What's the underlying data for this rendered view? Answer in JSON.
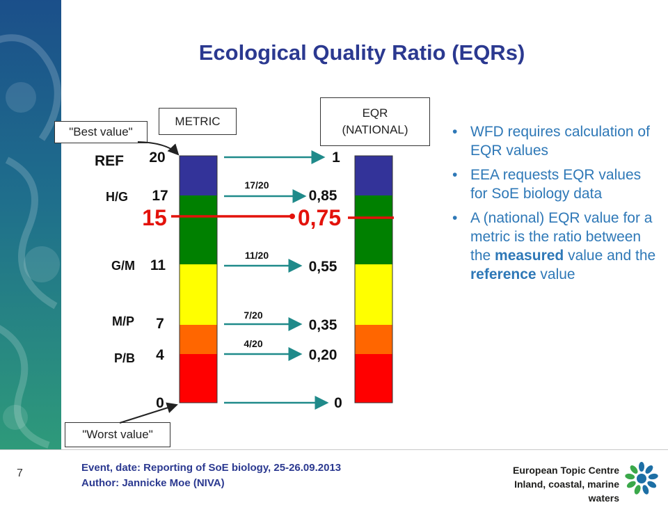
{
  "title": "Ecological Quality Ratio (EQRs)",
  "labels": {
    "metric": "METRIC",
    "eqr_line1": "EQR",
    "eqr_line2": "(NATIONAL)",
    "best": "\"Best value\"",
    "worst": "\"Worst value\""
  },
  "classes": [
    "REF",
    "H/G",
    "G/M",
    "M/P",
    "P/B"
  ],
  "metric_values": [
    "20",
    "17",
    "11",
    "7",
    "4",
    "0"
  ],
  "eqr_values": [
    "1",
    "0,85",
    "0,55",
    "0,35",
    "0,20",
    "0"
  ],
  "fractions": [
    "17/20",
    "11/20",
    "7/20",
    "4/20"
  ],
  "measured": {
    "metric": "15",
    "eqr": "0,75"
  },
  "band_colors": [
    "#333399",
    "#008000",
    "#008000",
    "#ffff00",
    "#ff6600",
    "#ff0000"
  ],
  "colors": {
    "title": "#2b3990",
    "arrow": "#1f8a8a",
    "highlight": "#e3120b",
    "bullet_text": "#2e78b7"
  },
  "bullets": [
    {
      "parts": [
        {
          "text": "WFD requires calculation of EQR values",
          "bold": false
        }
      ]
    },
    {
      "parts": [
        {
          "text": "EEA requests EQR values for SoE biology data",
          "bold": false
        }
      ]
    },
    {
      "parts": [
        {
          "text": "A (national) EQR value for a metric is the ratio between the ",
          "bold": false
        },
        {
          "text": "measured",
          "bold": true
        },
        {
          "text": " value and the ",
          "bold": false
        },
        {
          "text": "reference",
          "bold": true
        },
        {
          "text": " value",
          "bold": false
        }
      ]
    }
  ],
  "footer": {
    "page_number": "7",
    "line1": "Event, date: Reporting of SoE biology, 25-26.09.2013",
    "line2": "Author: Jannicke Moe (NIVA)",
    "logo_line1": "European Topic Centre",
    "logo_line2": "Inland, coastal, marine waters",
    "logo_icon": "etc-flower-logo-icon"
  }
}
